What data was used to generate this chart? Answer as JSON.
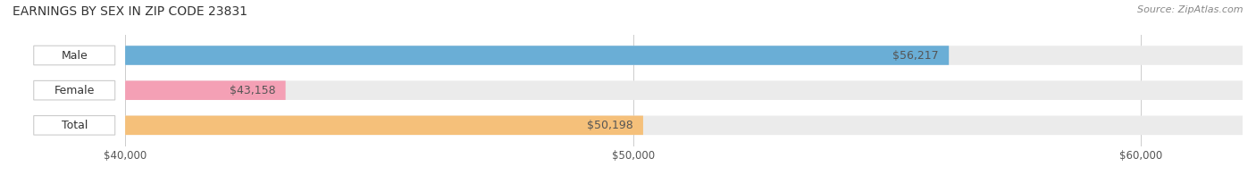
{
  "title": "EARNINGS BY SEX IN ZIP CODE 23831",
  "source": "Source: ZipAtlas.com",
  "categories": [
    "Male",
    "Female",
    "Total"
  ],
  "values": [
    56217,
    43158,
    50198
  ],
  "bar_colors": [
    "#6aaed6",
    "#f4a0b5",
    "#f5c07a"
  ],
  "label_colors": [
    "#6aaed6",
    "#f4a0b5",
    "#f5c07a"
  ],
  "track_color": "#ebebeb",
  "xlim": [
    40000,
    62000
  ],
  "xticks": [
    40000,
    50000,
    60000
  ],
  "xticklabels": [
    "$40,000",
    "$50,000",
    "$60,000"
  ],
  "value_labels": [
    "$56,217",
    "$43,158",
    "$50,198"
  ],
  "bar_height": 0.55,
  "title_fontsize": 10,
  "source_fontsize": 8,
  "tick_fontsize": 8.5,
  "label_fontsize": 9,
  "value_fontsize": 9,
  "background_color": "#ffffff",
  "label_bg_color": "#f5f5f5"
}
